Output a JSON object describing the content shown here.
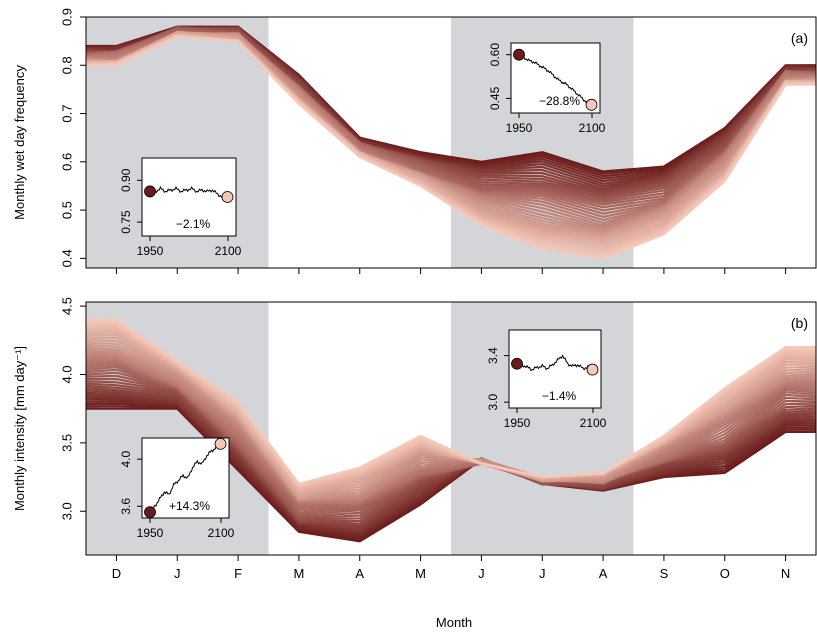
{
  "figure": {
    "xlabel": "Month",
    "colors": {
      "dark": "#6b1b1b",
      "light": "#f6c8b8",
      "shade": "#d3d5d8",
      "line": "#000000"
    }
  },
  "chart_data": [
    {
      "type": "line",
      "panel": "a",
      "panel_label": "(a)",
      "ylabel": "Monthly wet day frequency",
      "categories": [
        "D",
        "J",
        "F",
        "M",
        "A",
        "M",
        "J",
        "J",
        "A",
        "S",
        "O",
        "N"
      ],
      "ylim": [
        0.38,
        0.9
      ],
      "yticks": [
        0.4,
        0.5,
        0.6,
        0.7,
        0.8,
        0.9
      ],
      "ytick_labels": [
        "0.4",
        "0.5",
        "0.6",
        "0.7",
        "0.8",
        "0.9"
      ],
      "shaded_regions": [
        [
          "D",
          "F"
        ],
        [
          "J",
          "A"
        ]
      ],
      "envelope": {
        "first_period": [
          0.84,
          0.88,
          0.88,
          0.78,
          0.65,
          0.62,
          0.6,
          0.62,
          0.58,
          0.59,
          0.67,
          0.8
        ],
        "last_period": [
          0.8,
          0.86,
          0.85,
          0.72,
          0.61,
          0.55,
          0.47,
          0.42,
          0.4,
          0.45,
          0.56,
          0.76
        ]
      },
      "insets": [
        {
          "season": "DJF",
          "ylim": [
            0.7,
            0.98
          ],
          "yticks": [
            0.75,
            0.9
          ],
          "ytick_labels": [
            "0.75",
            "0.90"
          ],
          "xticks": [
            1950,
            2100
          ],
          "xtick_labels": [
            "1950",
            "2100"
          ],
          "x": [
            1950,
            1960,
            1970,
            1980,
            1990,
            2000,
            2010,
            2020,
            2030,
            2040,
            2050,
            2060,
            2070,
            2080,
            2090,
            2099
          ],
          "y": [
            0.86,
            0.86,
            0.87,
            0.86,
            0.865,
            0.87,
            0.86,
            0.865,
            0.87,
            0.86,
            0.865,
            0.86,
            0.865,
            0.85,
            0.84,
            0.84
          ],
          "change_label": "−2.1%"
        },
        {
          "season": "JJA",
          "ylim": [
            0.4,
            0.64
          ],
          "yticks": [
            0.45,
            0.6
          ],
          "ytick_labels": [
            "0.45",
            "0.60"
          ],
          "xticks": [
            1950,
            2100
          ],
          "xtick_labels": [
            "1950",
            "2100"
          ],
          "x": [
            1950,
            1960,
            1970,
            1980,
            1990,
            2000,
            2010,
            2020,
            2030,
            2040,
            2050,
            2060,
            2070,
            2080,
            2090,
            2099
          ],
          "y": [
            0.6,
            0.59,
            0.58,
            0.575,
            0.565,
            0.555,
            0.545,
            0.53,
            0.515,
            0.505,
            0.495,
            0.48,
            0.465,
            0.45,
            0.435,
            0.428
          ],
          "change_label": "−28.8%"
        }
      ]
    },
    {
      "type": "line",
      "panel": "b",
      "panel_label": "(b)",
      "ylabel": "Monthly intensity [mm day⁻¹]",
      "categories": [
        "D",
        "J",
        "F",
        "M",
        "A",
        "M",
        "J",
        "J",
        "A",
        "S",
        "O",
        "N"
      ],
      "ylim": [
        2.68,
        4.53
      ],
      "yticks": [
        3.0,
        3.5,
        4.0,
        4.5
      ],
      "ytick_labels": [
        "3.0",
        "3.5",
        "4.0",
        "4.5"
      ],
      "shaded_regions": [
        [
          "D",
          "F"
        ],
        [
          "J",
          "A"
        ]
      ],
      "envelope": {
        "first_period": [
          3.75,
          3.75,
          3.3,
          2.85,
          2.78,
          3.05,
          3.38,
          3.2,
          3.15,
          3.25,
          3.28,
          3.58
        ],
        "last_period": [
          4.4,
          4.1,
          3.8,
          3.2,
          3.32,
          3.55,
          3.35,
          3.25,
          3.28,
          3.55,
          3.9,
          4.2
        ]
      },
      "insets": [
        {
          "season": "DJF",
          "ylim": [
            3.5,
            4.18
          ],
          "yticks": [
            3.6,
            4.0
          ],
          "ytick_labels": [
            "3.6",
            "4.0"
          ],
          "xticks": [
            1950,
            2100
          ],
          "xtick_labels": [
            "1950",
            "2100"
          ],
          "x": [
            1950,
            1960,
            1970,
            1980,
            1990,
            2000,
            2010,
            2020,
            2030,
            2040,
            2050,
            2060,
            2070,
            2080,
            2090,
            2099
          ],
          "y": [
            3.55,
            3.6,
            3.66,
            3.72,
            3.7,
            3.78,
            3.82,
            3.86,
            3.84,
            3.93,
            3.98,
            3.96,
            4.03,
            4.07,
            4.1,
            4.13
          ],
          "change_label": "+14.3%"
        },
        {
          "season": "JJA",
          "ylim": [
            2.95,
            3.62
          ],
          "yticks": [
            3.0,
            3.4
          ],
          "ytick_labels": [
            "3.0",
            "3.4"
          ],
          "xticks": [
            1950,
            2100
          ],
          "xtick_labels": [
            "1950",
            "2100"
          ],
          "x": [
            1950,
            1960,
            1970,
            1980,
            1990,
            2000,
            2010,
            2020,
            2030,
            2040,
            2050,
            2060,
            2070,
            2080,
            2090,
            2099
          ],
          "y": [
            3.33,
            3.32,
            3.3,
            3.28,
            3.3,
            3.31,
            3.29,
            3.32,
            3.36,
            3.4,
            3.33,
            3.31,
            3.32,
            3.29,
            3.3,
            3.28
          ],
          "change_label": "−1.4%"
        }
      ]
    }
  ]
}
